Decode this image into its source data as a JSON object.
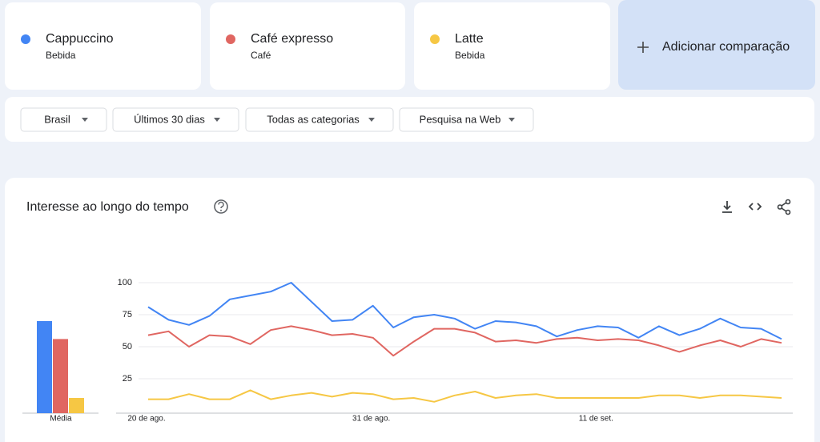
{
  "add_comparison": "Adicionar comparação",
  "filters": [
    "Brasil",
    "Últimos 30 dias",
    "Todas as categorias",
    "Pesquisa na Web"
  ],
  "chart_data": {
    "type": "line",
    "title": "Interesse ao longo do tempo",
    "categories": [
      "20 de ago.",
      null,
      null,
      null,
      null,
      null,
      null,
      null,
      null,
      null,
      null,
      "31 de ago.",
      null,
      null,
      null,
      null,
      null,
      null,
      null,
      null,
      null,
      null,
      "11 de set.",
      null,
      null,
      null,
      null,
      null,
      null,
      null,
      null,
      null
    ],
    "series": [
      {
        "name": "Cappuccino",
        "category": "Bebida",
        "color": "#4285f4",
        "values": [
          81,
          71,
          67,
          74,
          87,
          90,
          93,
          100,
          85,
          70,
          71,
          82,
          65,
          73,
          75,
          72,
          64,
          70,
          69,
          66,
          58,
          63,
          66,
          65,
          57,
          66,
          59,
          64,
          72,
          65,
          64,
          56
        ]
      },
      {
        "name": "Café expresso",
        "category": "Café",
        "color": "#e06661",
        "values": [
          59,
          62,
          50,
          59,
          58,
          52,
          63,
          66,
          63,
          59,
          60,
          57,
          43,
          54,
          64,
          64,
          61,
          54,
          55,
          53,
          56,
          57,
          55,
          56,
          55,
          51,
          46,
          51,
          55,
          50,
          56,
          53
        ]
      },
      {
        "name": "Latte",
        "category": "Bebida",
        "color": "#f6c744",
        "values": [
          9,
          9,
          13,
          9,
          9,
          16,
          9,
          12,
          14,
          11,
          14,
          13,
          9,
          10,
          7,
          12,
          15,
          10,
          12,
          13,
          10,
          10,
          10,
          10,
          10,
          12,
          12,
          10,
          12,
          12,
          11,
          10
        ]
      }
    ],
    "ylim": [
      0,
      100
    ],
    "yticks": [
      25,
      50,
      75,
      100
    ],
    "grid": true,
    "average": {
      "label": "Média",
      "values": [
        70,
        56,
        10
      ]
    }
  }
}
